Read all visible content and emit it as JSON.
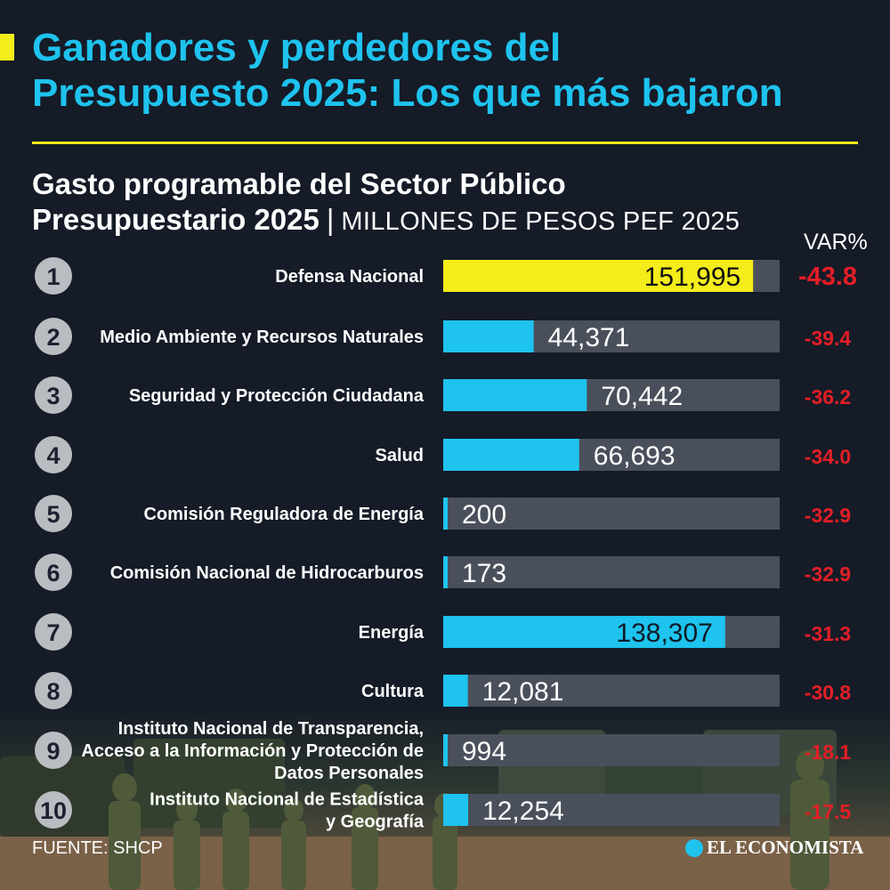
{
  "title_lines": [
    "Ganadores y perdedores del",
    "Presupuesto 2025: Los que más bajaron"
  ],
  "subtitle_line1": "Gasto programable del Sector Público",
  "subtitle_line2": "Presupuestario 2025",
  "subtitle_separator": "|",
  "units": "MILLONES DE PESOS PEF 2025",
  "var_header": "VAR%",
  "source": "FUENTE: SHCP",
  "logo": "EL ECONOMISTA",
  "colors": {
    "background": "#151b27",
    "title": "#1ec3ee",
    "accent": "#f4ec1b",
    "bar": "#1ec3ee",
    "highlight_bar": "#f4ec1b",
    "track": "#4a505b",
    "negative": "#e41e26"
  },
  "chart_data": {
    "type": "bar",
    "orientation": "horizontal",
    "title": "Gasto programable del Sector Público Presupuestario 2025",
    "units": "MILLONES DE PESOS PEF 2025",
    "xlim": [
      0,
      165000
    ],
    "ranks": [
      "1",
      "2",
      "3",
      "4",
      "5",
      "6",
      "7",
      "8",
      "9",
      "10"
    ],
    "categories": [
      [
        "Defensa Nacional"
      ],
      [
        "Medio Ambiente y Recursos Naturales"
      ],
      [
        "Seguridad y Protección Ciudadana"
      ],
      [
        "Salud"
      ],
      [
        "Comisión Reguladora de Energía"
      ],
      [
        "Comisión Nacional de Hidrocarburos"
      ],
      [
        "Energía"
      ],
      [
        "Cultura"
      ],
      [
        "Instituto Nacional de Transparencia,",
        "Acceso a la Información y Protección de",
        "Datos Personales"
      ],
      [
        "Instituto Nacional de Estadística",
        "y Geografía"
      ]
    ],
    "values": [
      151995,
      44371,
      70442,
      66693,
      200,
      173,
      138307,
      12081,
      994,
      12254
    ],
    "value_labels": [
      "151,995",
      "44,371",
      "70,442",
      "66,693",
      "200",
      "173",
      "138,307",
      "12,081",
      "994",
      "12,254"
    ],
    "variation_pct": [
      -43.8,
      -39.4,
      -36.2,
      -34.0,
      -32.9,
      -32.9,
      -31.3,
      -30.8,
      -18.1,
      -17.5
    ],
    "variation_labels": [
      "-43.8",
      "-39.4",
      "-36.2",
      "-34.0",
      "-32.9",
      "-32.9",
      "-31.3",
      "-30.8",
      "-18.1",
      "-17.5"
    ],
    "highlight_index": 0
  }
}
